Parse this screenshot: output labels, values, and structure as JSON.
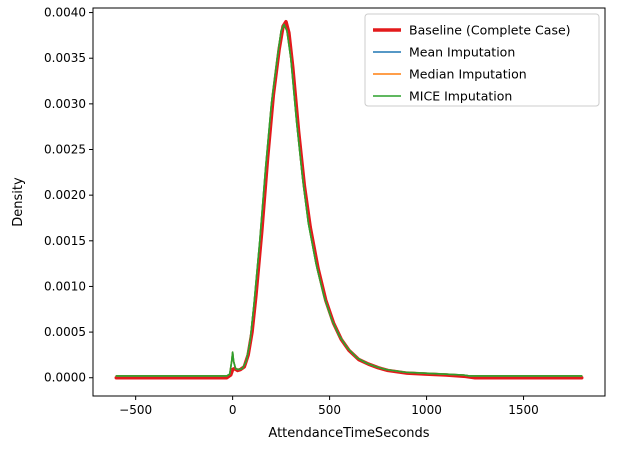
{
  "chart_data": {
    "type": "line",
    "xlabel": "AttendanceTimeSeconds",
    "ylabel": "Density",
    "xlim": [
      -720,
      1920
    ],
    "ylim": [
      -0.0002,
      0.00405
    ],
    "x_ticks": [
      {
        "value": -500,
        "label": "−500"
      },
      {
        "value": 0,
        "label": "0"
      },
      {
        "value": 500,
        "label": "500"
      },
      {
        "value": 1000,
        "label": "1000"
      },
      {
        "value": 1500,
        "label": "1500"
      }
    ],
    "y_ticks": [
      {
        "value": 0.0,
        "label": "0.0000"
      },
      {
        "value": 0.0005,
        "label": "0.0005"
      },
      {
        "value": 0.001,
        "label": "0.0010"
      },
      {
        "value": 0.0015,
        "label": "0.0015"
      },
      {
        "value": 0.002,
        "label": "0.0020"
      },
      {
        "value": 0.0025,
        "label": "0.0025"
      },
      {
        "value": 0.003,
        "label": "0.0030"
      },
      {
        "value": 0.0035,
        "label": "0.0035"
      },
      {
        "value": 0.004,
        "label": "0.0040"
      }
    ],
    "legend_position": "top-right",
    "series": [
      {
        "name": "Baseline (Complete Case)",
        "color": "#e31a1c",
        "line_width": "thick",
        "points": [
          [
            -600,
            0.0
          ],
          [
            -100,
            0.0
          ],
          [
            -30,
            0.0
          ],
          [
            -10,
            3e-05
          ],
          [
            0,
            9e-05
          ],
          [
            10,
            0.0001
          ],
          [
            25,
            8e-05
          ],
          [
            40,
            9e-05
          ],
          [
            60,
            0.00012
          ],
          [
            80,
            0.00025
          ],
          [
            100,
            0.0005
          ],
          [
            120,
            0.0009
          ],
          [
            150,
            0.0016
          ],
          [
            180,
            0.0024
          ],
          [
            210,
            0.0031
          ],
          [
            240,
            0.0036
          ],
          [
            260,
            0.00385
          ],
          [
            275,
            0.0039
          ],
          [
            290,
            0.00378
          ],
          [
            310,
            0.0034
          ],
          [
            340,
            0.0027
          ],
          [
            370,
            0.0021
          ],
          [
            400,
            0.00165
          ],
          [
            440,
            0.0012
          ],
          [
            480,
            0.00085
          ],
          [
            520,
            0.0006
          ],
          [
            560,
            0.00042
          ],
          [
            600,
            0.0003
          ],
          [
            650,
            0.0002
          ],
          [
            700,
            0.00015
          ],
          [
            750,
            0.00011
          ],
          [
            800,
            8e-05
          ],
          [
            900,
            5e-05
          ],
          [
            1000,
            4e-05
          ],
          [
            1100,
            3e-05
          ],
          [
            1200,
            1.5e-05
          ],
          [
            1250,
            0.0
          ],
          [
            1800,
            0.0
          ]
        ]
      },
      {
        "name": "Mean Imputation",
        "color": "#1f77b4",
        "line_width": "normal",
        "points": [
          [
            -600,
            2e-05
          ],
          [
            -100,
            2e-05
          ],
          [
            -30,
            2e-05
          ],
          [
            -15,
            4e-05
          ],
          [
            -5,
            0.00018
          ],
          [
            0,
            0.00028
          ],
          [
            5,
            0.00018
          ],
          [
            15,
            0.0001
          ],
          [
            30,
            9e-05
          ],
          [
            50,
            0.0001
          ],
          [
            70,
            0.00018
          ],
          [
            90,
            0.0004
          ],
          [
            110,
            0.0008
          ],
          [
            140,
            0.0015
          ],
          [
            170,
            0.0023
          ],
          [
            200,
            0.003
          ],
          [
            230,
            0.0035
          ],
          [
            250,
            0.0038
          ],
          [
            265,
            0.00387
          ],
          [
            280,
            0.0038
          ],
          [
            300,
            0.0035
          ],
          [
            330,
            0.0028
          ],
          [
            360,
            0.0022
          ],
          [
            390,
            0.0017
          ],
          [
            430,
            0.00125
          ],
          [
            470,
            0.0009
          ],
          [
            510,
            0.00064
          ],
          [
            550,
            0.00046
          ],
          [
            590,
            0.00033
          ],
          [
            640,
            0.00022
          ],
          [
            690,
            0.00016
          ],
          [
            740,
            0.00012
          ],
          [
            790,
            9e-05
          ],
          [
            890,
            6e-05
          ],
          [
            990,
            5e-05
          ],
          [
            1090,
            4e-05
          ],
          [
            1190,
            3e-05
          ],
          [
            1220,
            2e-05
          ],
          [
            1800,
            2e-05
          ]
        ]
      },
      {
        "name": "Median Imputation",
        "color": "#ff7f0e",
        "line_width": "normal",
        "points": [
          [
            -600,
            2e-05
          ],
          [
            -100,
            2e-05
          ],
          [
            -30,
            2e-05
          ],
          [
            -15,
            4e-05
          ],
          [
            -5,
            0.00018
          ],
          [
            0,
            0.00028
          ],
          [
            5,
            0.00018
          ],
          [
            15,
            0.0001
          ],
          [
            30,
            9e-05
          ],
          [
            50,
            0.0001
          ],
          [
            70,
            0.00018
          ],
          [
            90,
            0.0004
          ],
          [
            110,
            0.0008
          ],
          [
            140,
            0.0015
          ],
          [
            170,
            0.0023
          ],
          [
            200,
            0.003
          ],
          [
            230,
            0.0035
          ],
          [
            250,
            0.0038
          ],
          [
            265,
            0.00387
          ],
          [
            280,
            0.0038
          ],
          [
            300,
            0.0035
          ],
          [
            330,
            0.0028
          ],
          [
            360,
            0.0022
          ],
          [
            390,
            0.0017
          ],
          [
            430,
            0.00125
          ],
          [
            470,
            0.0009
          ],
          [
            510,
            0.00064
          ],
          [
            550,
            0.00046
          ],
          [
            590,
            0.00033
          ],
          [
            640,
            0.00022
          ],
          [
            690,
            0.00016
          ],
          [
            740,
            0.00012
          ],
          [
            790,
            9e-05
          ],
          [
            890,
            6e-05
          ],
          [
            990,
            5e-05
          ],
          [
            1090,
            4e-05
          ],
          [
            1190,
            3e-05
          ],
          [
            1220,
            2e-05
          ],
          [
            1800,
            2e-05
          ]
        ]
      },
      {
        "name": "MICE Imputation",
        "color": "#2ca02c",
        "line_width": "normal",
        "points": [
          [
            -600,
            2e-05
          ],
          [
            -100,
            2e-05
          ],
          [
            -30,
            2e-05
          ],
          [
            -15,
            4e-05
          ],
          [
            -5,
            0.00018
          ],
          [
            0,
            0.00028
          ],
          [
            5,
            0.00018
          ],
          [
            15,
            0.0001
          ],
          [
            30,
            9e-05
          ],
          [
            50,
            0.0001
          ],
          [
            70,
            0.00018
          ],
          [
            90,
            0.0004
          ],
          [
            110,
            0.0008
          ],
          [
            140,
            0.0015
          ],
          [
            170,
            0.0023
          ],
          [
            200,
            0.003
          ],
          [
            230,
            0.0035
          ],
          [
            250,
            0.0038
          ],
          [
            265,
            0.00387
          ],
          [
            280,
            0.0038
          ],
          [
            300,
            0.0035
          ],
          [
            330,
            0.0028
          ],
          [
            360,
            0.0022
          ],
          [
            390,
            0.0017
          ],
          [
            430,
            0.00125
          ],
          [
            470,
            0.0009
          ],
          [
            510,
            0.00064
          ],
          [
            550,
            0.00046
          ],
          [
            590,
            0.00033
          ],
          [
            640,
            0.00022
          ],
          [
            690,
            0.00016
          ],
          [
            740,
            0.00012
          ],
          [
            790,
            9e-05
          ],
          [
            890,
            6e-05
          ],
          [
            990,
            5e-05
          ],
          [
            1090,
            4e-05
          ],
          [
            1190,
            3e-05
          ],
          [
            1220,
            2e-05
          ],
          [
            1800,
            2e-05
          ]
        ]
      }
    ]
  }
}
